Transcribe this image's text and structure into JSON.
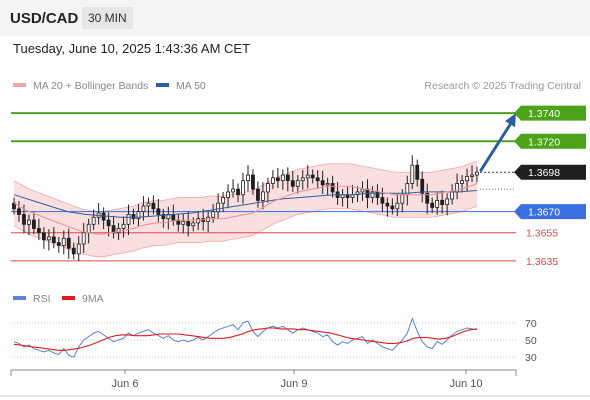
{
  "header": {
    "symbol": "USD/CAD",
    "interval": "30 MIN"
  },
  "datetime": "Tuesday, June 10, 2025 1:43:36 AM CET",
  "legend": {
    "ma20": "MA 20 + Bollinger Bands",
    "ma50": "MA 50"
  },
  "credit": "Research © 2025 Trading Central",
  "rsi_legend": {
    "rsi": "RSI",
    "ma": "9MA"
  },
  "colors": {
    "green": "#4ca319",
    "blue": "#3a6fe0",
    "red": "#e0474c",
    "arrow": "#2e5f9c",
    "band": "#f7c9cb",
    "candle": "#1f1f1f"
  },
  "chart_data": {
    "type": "candlestick",
    "x_ticks": [
      "Jun 6",
      "Jun 9",
      "Jun 10"
    ],
    "ylim": [
      1.362,
      1.3755
    ],
    "levels": [
      {
        "label": "1.3740",
        "value": 1.374,
        "kind": "resistance",
        "color": "#4ca319"
      },
      {
        "label": "1.3720",
        "value": 1.372,
        "kind": "resistance",
        "color": "#4ca319"
      },
      {
        "label": "1.3698",
        "value": 1.3698,
        "kind": "last",
        "color": "#1f1f1f"
      },
      {
        "label": "1.3670",
        "value": 1.367,
        "kind": "pivot",
        "color": "#3a6fe0"
      },
      {
        "label": "1.3655",
        "value": 1.3655,
        "kind": "support",
        "color": "#e0474c"
      },
      {
        "label": "1.3635",
        "value": 1.3635,
        "kind": "support",
        "color": "#e0474c"
      }
    ],
    "close": [
      1.3672,
      1.3668,
      1.3661,
      1.3664,
      1.3658,
      1.3655,
      1.365,
      1.3652,
      1.3648,
      1.3646,
      1.3651,
      1.3644,
      1.364,
      1.3647,
      1.3655,
      1.3661,
      1.3666,
      1.3669,
      1.3664,
      1.366,
      1.3655,
      1.3658,
      1.3661,
      1.3668,
      1.3665,
      1.367,
      1.3674,
      1.3676,
      1.3672,
      1.3668,
      1.3665,
      1.3668,
      1.3664,
      1.3661,
      1.3663,
      1.366,
      1.3662,
      1.3665,
      1.3663,
      1.3666,
      1.367,
      1.3676,
      1.368,
      1.3684,
      1.3686,
      1.3682,
      1.3692,
      1.3696,
      1.3686,
      1.3678,
      1.3684,
      1.369,
      1.3694,
      1.3692,
      1.3696,
      1.3692,
      1.3688,
      1.3692,
      1.3694,
      1.3696,
      1.3694,
      1.3692,
      1.3689,
      1.369,
      1.3684,
      1.368,
      1.3682,
      1.368,
      1.3682,
      1.3684,
      1.3686,
      1.368,
      1.3684,
      1.368,
      1.3676,
      1.3674,
      1.3672,
      1.3676,
      1.3682,
      1.369,
      1.3703,
      1.3693,
      1.3683,
      1.3676,
      1.3673,
      1.3678,
      1.3675,
      1.3679,
      1.3684,
      1.369,
      1.3692,
      1.3695,
      1.3696,
      1.3698
    ],
    "ma20": [
      1.3676,
      1.3673,
      1.367,
      1.3668,
      1.3666,
      1.3664,
      1.3662,
      1.366,
      1.3658,
      1.3656,
      1.3655,
      1.3654,
      1.3654,
      1.3655,
      1.3656,
      1.3657,
      1.3658,
      1.366,
      1.3661,
      1.3662,
      1.3662,
      1.3663,
      1.3664,
      1.3664,
      1.3664,
      1.3664,
      1.3665,
      1.3665,
      1.3665,
      1.3666,
      1.3667,
      1.3668,
      1.3669,
      1.3672,
      1.3675,
      1.3678,
      1.368,
      1.3682,
      1.3684,
      1.3685,
      1.3686,
      1.3687,
      1.3688,
      1.3688,
      1.3688,
      1.3688,
      1.3687,
      1.3686,
      1.3685,
      1.3684,
      1.3683,
      1.3682,
      1.3682,
      1.3682,
      1.3682,
      1.3682,
      1.3682,
      1.3683,
      1.3684,
      1.3685,
      1.3686,
      1.3688,
      1.369
    ],
    "bb_width": 0.0016,
    "ma50": [
      1.3682,
      1.3678,
      1.3674,
      1.367,
      1.3668,
      1.3667,
      1.3666,
      1.3666,
      1.3667,
      1.3668,
      1.3669,
      1.3671,
      1.3673,
      1.3675,
      1.3677,
      1.3679,
      1.368,
      1.3681,
      1.3682,
      1.3682,
      1.3683,
      1.3683,
      1.3683,
      1.3684,
      1.3684,
      1.3684,
      1.3685
    ],
    "rsi": {
      "ticks": [
        70,
        50,
        30
      ],
      "ylim": [
        22,
        78
      ],
      "values": [
        48,
        46,
        42,
        44,
        40,
        38,
        36,
        38,
        35,
        33,
        40,
        32,
        30,
        42,
        50,
        54,
        58,
        60,
        56,
        52,
        48,
        50,
        52,
        58,
        55,
        58,
        60,
        62,
        58,
        55,
        52,
        55,
        50,
        48,
        50,
        48,
        50,
        53,
        50,
        54,
        58,
        62,
        64,
        66,
        68,
        62,
        70,
        72,
        60,
        54,
        60,
        64,
        66,
        64,
        66,
        62,
        58,
        62,
        64,
        62,
        60,
        58,
        54,
        56,
        48,
        44,
        48,
        46,
        50,
        52,
        54,
        46,
        50,
        46,
        42,
        40,
        38,
        44,
        50,
        58,
        75,
        60,
        48,
        42,
        40,
        48,
        45,
        50,
        56,
        60,
        62,
        64,
        63,
        62
      ],
      "ma9": [
        45,
        44,
        43,
        42,
        41,
        40,
        39,
        38,
        38,
        39,
        40,
        42,
        44,
        47,
        50,
        53,
        55,
        56,
        56,
        55,
        55,
        55,
        56,
        57,
        57,
        57,
        57,
        56,
        55,
        54,
        53,
        52,
        52,
        52,
        53,
        55,
        57,
        60,
        62,
        63,
        64,
        64,
        63,
        63,
        63,
        62,
        62,
        61,
        60,
        59,
        58,
        56,
        54,
        52,
        51,
        50,
        49,
        48,
        47,
        46,
        46,
        47,
        49,
        52,
        53,
        53,
        52,
        51,
        52,
        54,
        57,
        60,
        62,
        63
      ]
    }
  }
}
